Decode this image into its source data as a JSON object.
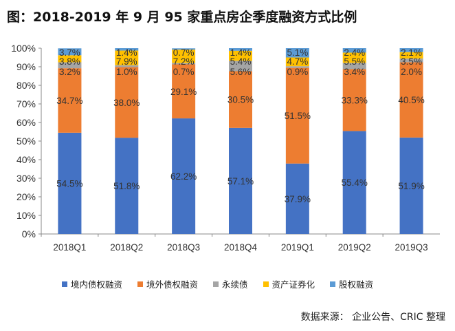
{
  "chart_data": {
    "type": "bar",
    "stacked": true,
    "title": "图：2018-2019 年 9 月 95 家重点房企季度融资方式比例",
    "categories": [
      "2018Q1",
      "2018Q2",
      "2018Q3",
      "2018Q4",
      "2019Q1",
      "2019Q2",
      "2019Q3"
    ],
    "series": [
      {
        "name": "境内债权融资",
        "color": "#4472C4",
        "values": [
          54.5,
          51.8,
          62.2,
          57.1,
          37.9,
          55.4,
          51.9
        ]
      },
      {
        "name": "境外债权融资",
        "color": "#ED7D31",
        "values": [
          34.7,
          38.0,
          29.1,
          30.5,
          51.5,
          33.3,
          40.5
        ]
      },
      {
        "name": "永续债",
        "color": "#A5A5A5",
        "values": [
          3.2,
          1.0,
          0.7,
          5.6,
          0.9,
          3.4,
          2.0
        ]
      },
      {
        "name": "资产证券化",
        "color": "#FFC000",
        "values": [
          3.8,
          7.9,
          7.2,
          5.4,
          4.7,
          5.5,
          3.5
        ]
      },
      {
        "name": "股权融资",
        "color": "#5B9BD5",
        "values": [
          3.7,
          1.4,
          0.7,
          1.4,
          5.1,
          2.4,
          2.1
        ]
      }
    ],
    "ylim": [
      0,
      100
    ],
    "yticks": [
      "0%",
      "10%",
      "20%",
      "30%",
      "40%",
      "50%",
      "60%",
      "70%",
      "80%",
      "90%",
      "100%"
    ],
    "grid": false,
    "legend_position": "bottom"
  },
  "source": "数据来源：  企业公告、CRIC 整理"
}
